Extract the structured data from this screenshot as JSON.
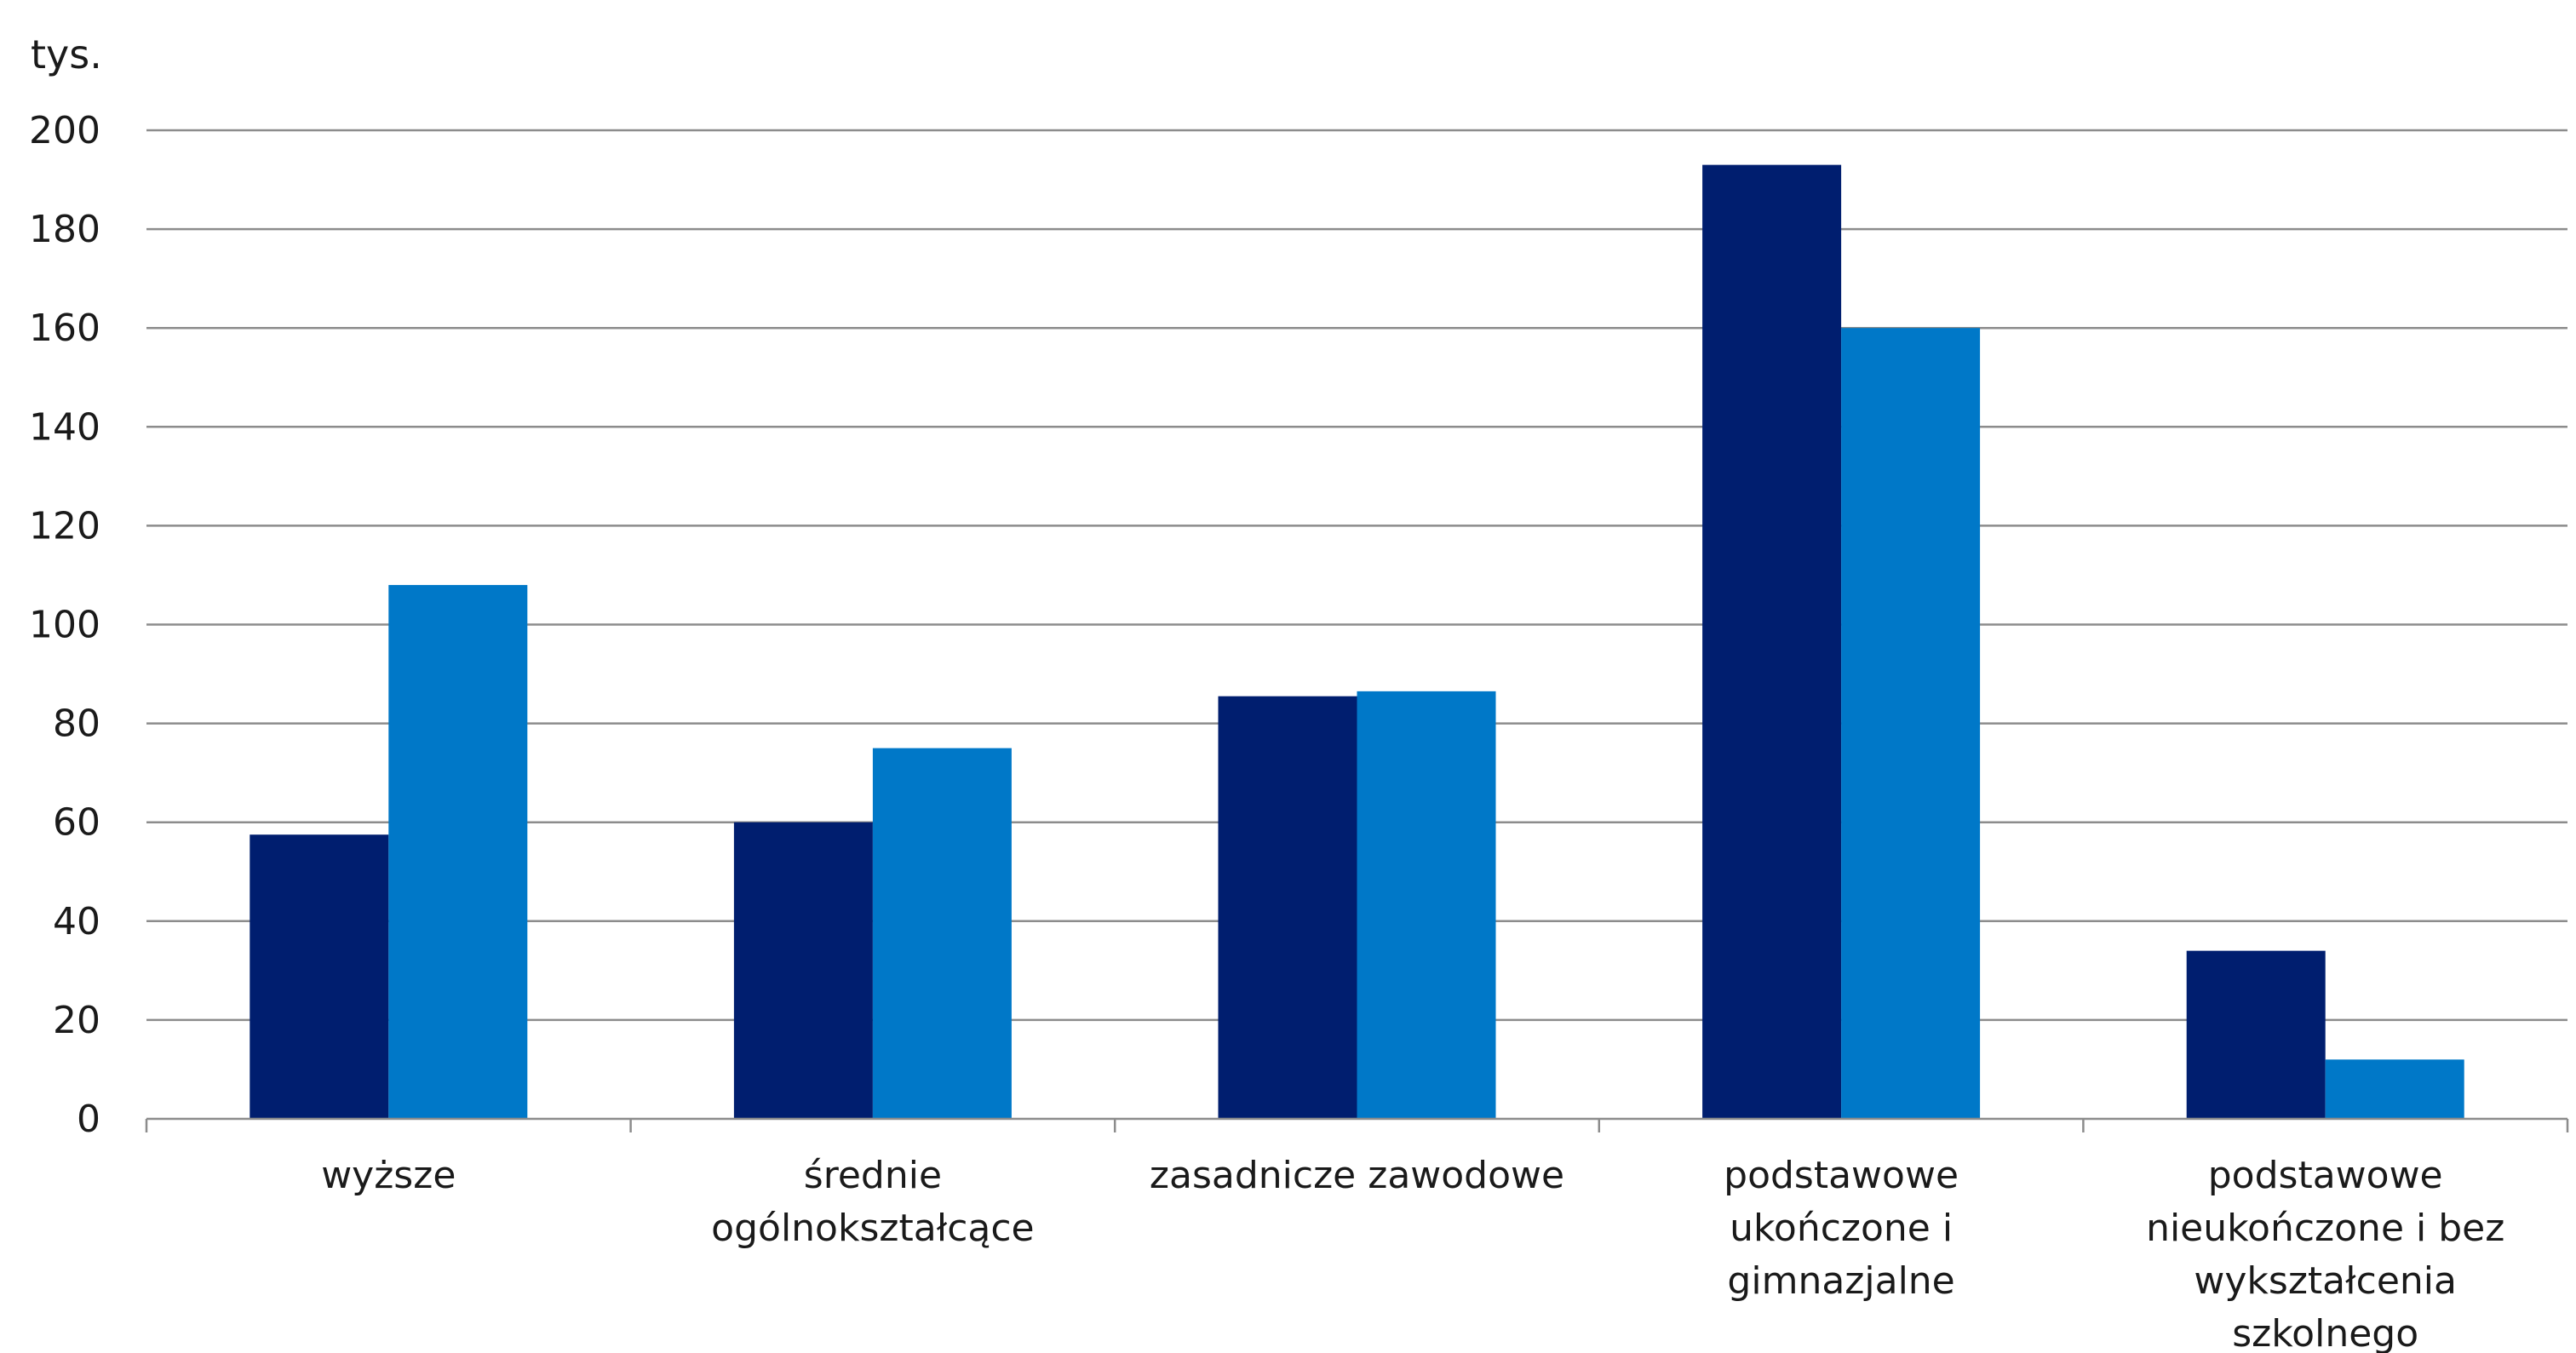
{
  "chart_data": {
    "type": "bar",
    "unit_label": "tys.",
    "ylim": [
      0,
      200
    ],
    "yticks": [
      0,
      20,
      40,
      60,
      80,
      100,
      120,
      140,
      160,
      180,
      200
    ],
    "grid": true,
    "categories": [
      [
        "wyższe"
      ],
      [
        "średnie",
        "ogólnokształcące"
      ],
      [
        "zasadnicze zawodowe"
      ],
      [
        "podstawowe",
        "ukończone i",
        "gimnazjalne"
      ],
      [
        "podstawowe",
        "nieukończone i bez",
        "wykształcenia",
        "szkolnego"
      ]
    ],
    "series": [
      {
        "color": "#001e6f",
        "values": [
          57.5,
          60,
          85.5,
          193,
          34
        ]
      },
      {
        "color": "#0078c8",
        "values": [
          108,
          75,
          86.5,
          160,
          12
        ]
      }
    ]
  }
}
